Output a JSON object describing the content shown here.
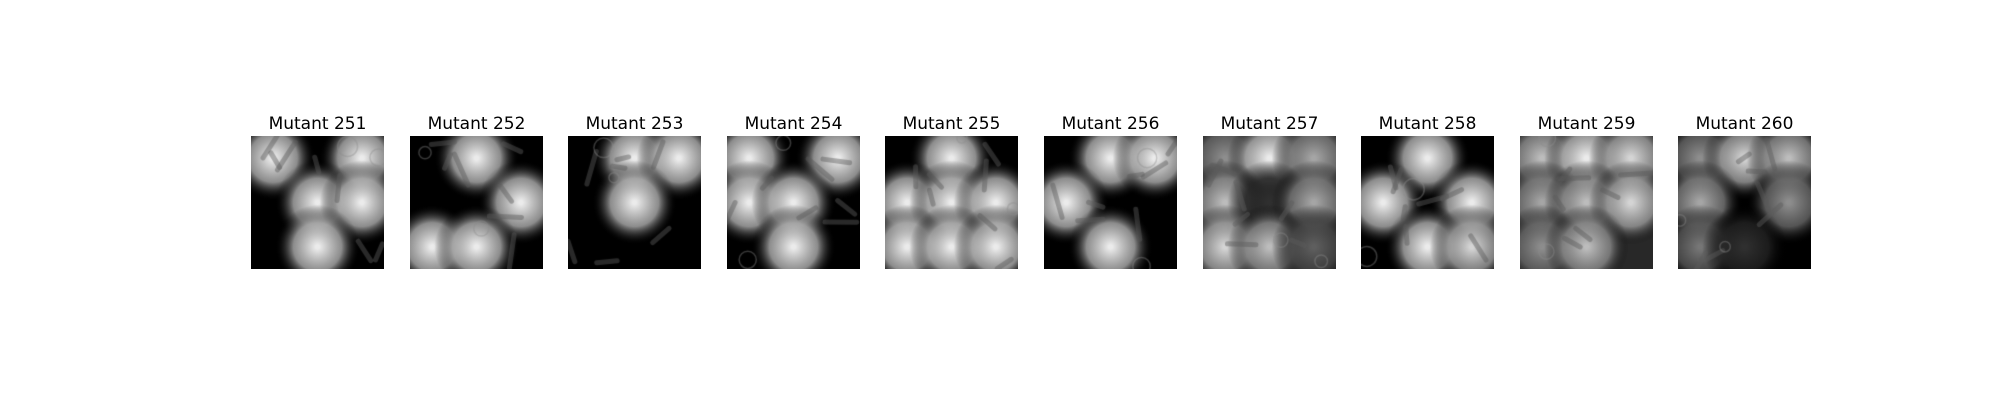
{
  "figure": {
    "panels": [
      {
        "title": "Mutant 251",
        "texture": "dark-blob-mask"
      },
      {
        "title": "Mutant 252",
        "texture": "dark-blob-mask"
      },
      {
        "title": "Mutant 253",
        "texture": "dark-blob-mask"
      },
      {
        "title": "Mutant 254",
        "texture": "dark-blob-mask"
      },
      {
        "title": "Mutant 255",
        "texture": "dark-blob-mask"
      },
      {
        "title": "Mutant 256",
        "texture": "dark-blob-mask"
      },
      {
        "title": "Mutant 257",
        "texture": "gray-blob-mask"
      },
      {
        "title": "Mutant 258",
        "texture": "dark-blob-mask"
      },
      {
        "title": "Mutant 259",
        "texture": "gray-blob-mask"
      },
      {
        "title": "Mutant 260",
        "texture": "dark-blob-mask"
      }
    ]
  }
}
